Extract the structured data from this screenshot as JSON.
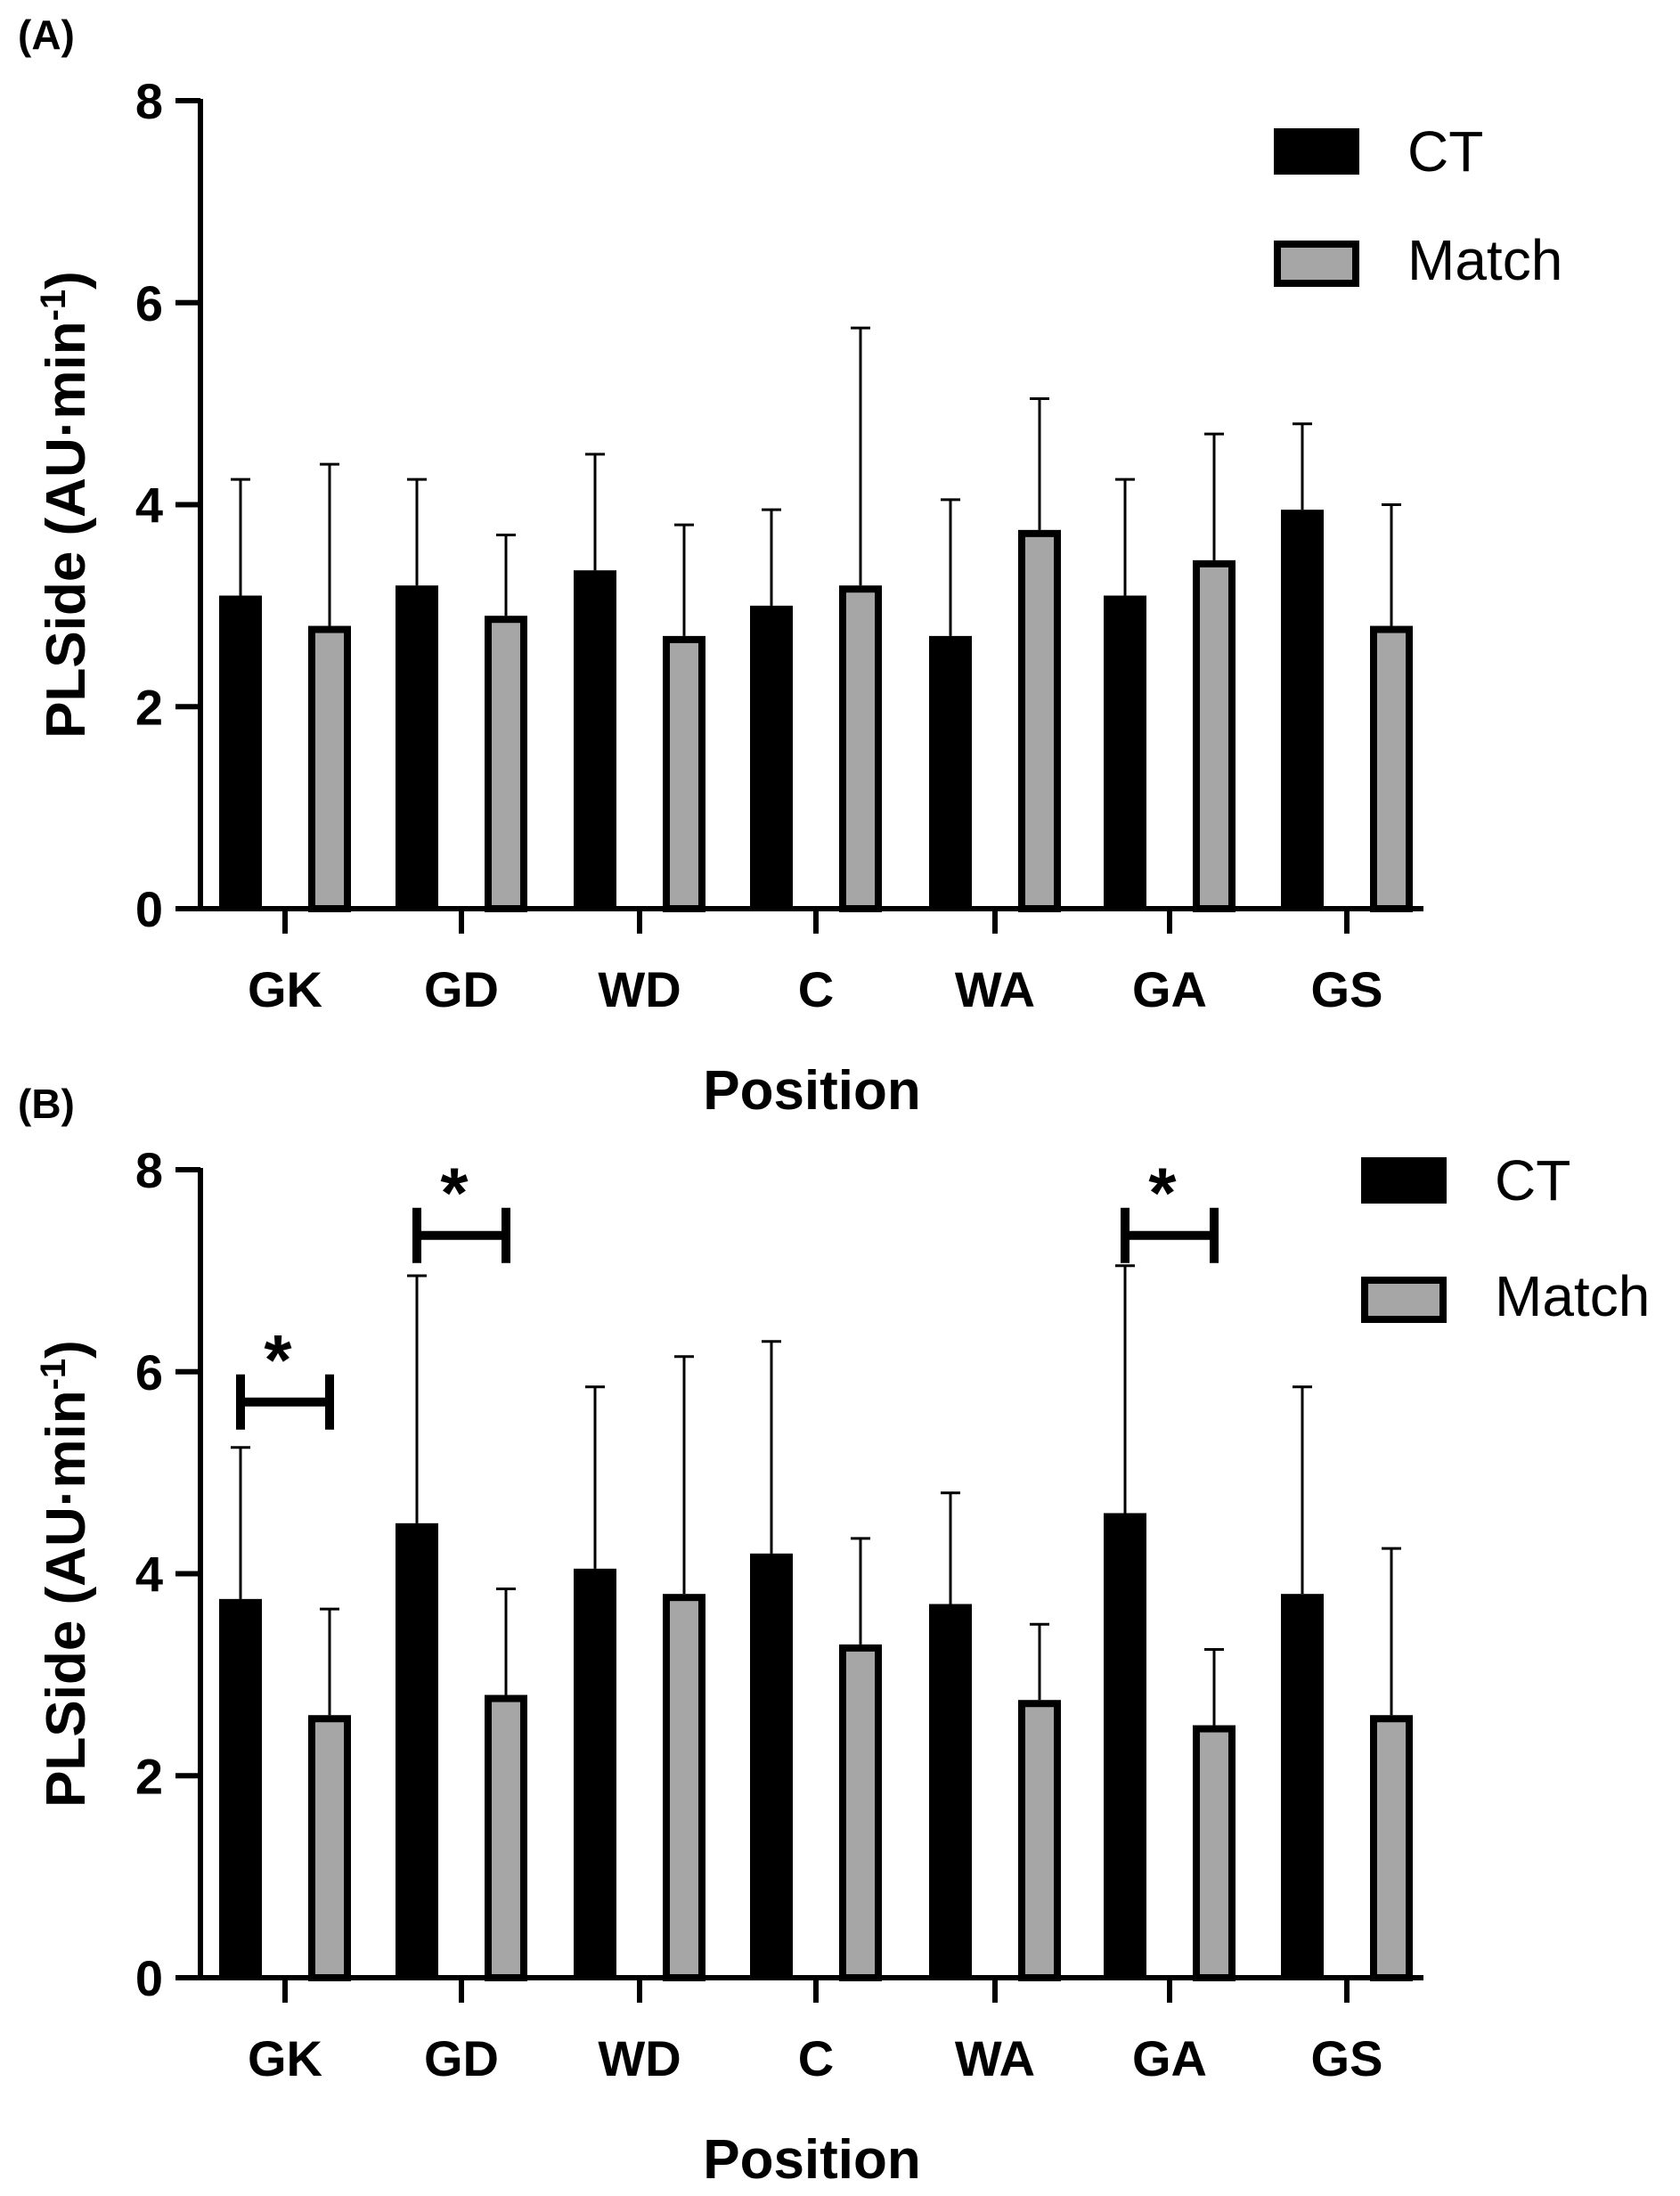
{
  "chart_data": [
    {
      "panel_label": "(A)",
      "type": "bar",
      "xlabel": "Position",
      "ylabel": "PLSide (AU·min",
      "ylabel_superscript": "-1",
      "ylabel_close": ")",
      "ylim": [
        0,
        8
      ],
      "yticks": [
        "0",
        "2",
        "4",
        "6",
        "8"
      ],
      "categories": [
        "GK",
        "GD",
        "WD",
        "C",
        "WA",
        "GA",
        "GS"
      ],
      "legend_position": "top-right",
      "series": [
        {
          "name": "CT",
          "color": "#000000",
          "values": [
            3.1,
            3.2,
            3.35,
            3.0,
            2.7,
            3.1,
            3.95
          ],
          "error_upper": [
            4.25,
            4.25,
            4.5,
            3.95,
            4.05,
            4.25,
            4.8
          ]
        },
        {
          "name": "Match",
          "color": "#a6a6a6",
          "values": [
            2.8,
            2.9,
            2.7,
            3.2,
            3.75,
            3.45,
            2.8
          ],
          "error_upper": [
            4.4,
            3.7,
            3.8,
            5.75,
            5.05,
            4.7,
            4.0
          ]
        }
      ],
      "significance": []
    },
    {
      "panel_label": "(B)",
      "type": "bar",
      "xlabel": "Position",
      "ylabel": "PLSide (AU·min",
      "ylabel_superscript": "-1",
      "ylabel_close": ")",
      "ylim": [
        0,
        8
      ],
      "yticks": [
        "0",
        "2",
        "4",
        "6",
        "8"
      ],
      "categories": [
        "GK",
        "GD",
        "WD",
        "C",
        "WA",
        "GA",
        "GS"
      ],
      "legend_position": "top-right",
      "series": [
        {
          "name": "CT",
          "color": "#000000",
          "values": [
            3.75,
            4.5,
            4.05,
            4.2,
            3.7,
            4.6,
            3.8
          ],
          "error_upper": [
            5.25,
            6.95,
            5.85,
            6.3,
            4.8,
            7.05,
            5.85
          ]
        },
        {
          "name": "Match",
          "color": "#a6a6a6",
          "values": [
            2.6,
            2.8,
            3.8,
            3.3,
            2.75,
            2.5,
            2.6
          ],
          "error_upper": [
            3.65,
            3.85,
            6.15,
            4.35,
            3.5,
            3.25,
            4.25
          ]
        }
      ],
      "significance": [
        {
          "category": "GK",
          "label": "*",
          "level": 5.7
        },
        {
          "category": "GD",
          "label": "*",
          "level": 7.35
        },
        {
          "category": "GA",
          "label": "*",
          "level": 7.35
        }
      ]
    }
  ]
}
